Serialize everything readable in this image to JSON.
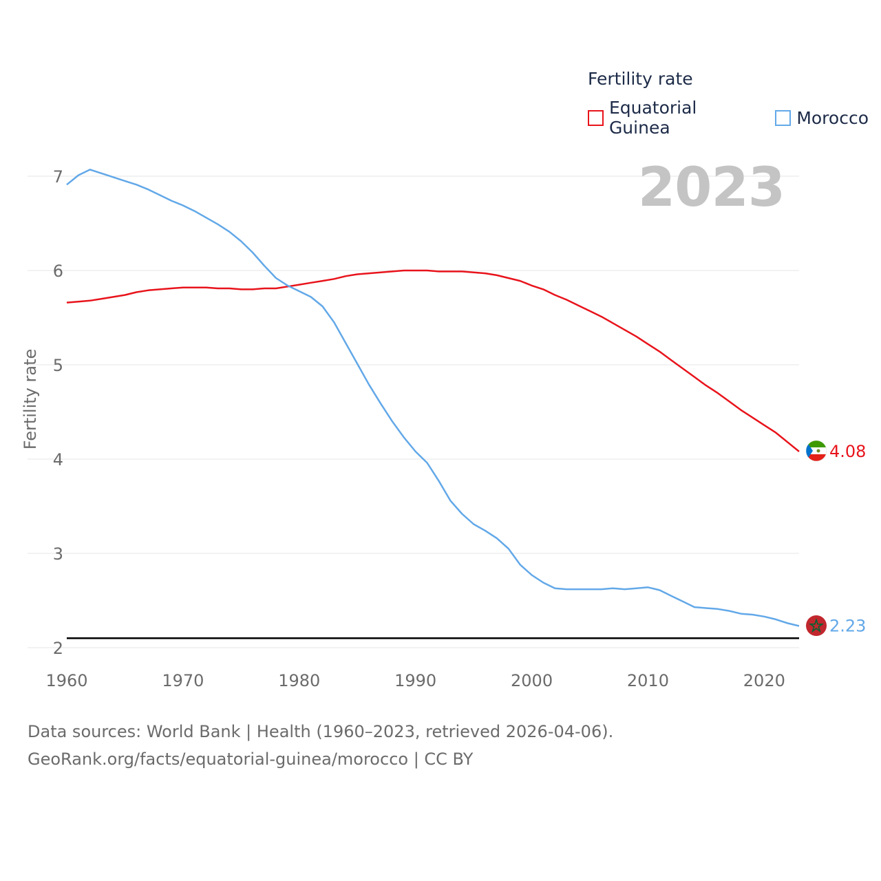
{
  "legend": {
    "title": "Fertility rate",
    "items": [
      {
        "label": "Equatorial Guinea",
        "color": "#e8131b"
      },
      {
        "label": "Morocco",
        "color": "#62a8e8"
      }
    ]
  },
  "year_label": "2023",
  "footer": {
    "line1": "Data sources: World Bank | Health (1960–2023, retrieved 2026-04-06).",
    "line2": "GeoRank.org/facts/equatorial-guinea/morocco | CC BY"
  },
  "chart_data": {
    "type": "line",
    "title": "Fertility rate",
    "xlabel": "",
    "ylabel": "Fertility rate",
    "xlim": [
      1960,
      2023
    ],
    "ylim": [
      2,
      7
    ],
    "x_ticks": [
      1960,
      1970,
      1980,
      1990,
      2000,
      2010,
      2020
    ],
    "y_ticks": [
      2,
      3,
      4,
      5,
      6,
      7
    ],
    "grid": true,
    "reference_line": {
      "y": 2.1,
      "color": "#000000"
    },
    "x": [
      1960,
      1961,
      1962,
      1963,
      1964,
      1965,
      1966,
      1967,
      1968,
      1969,
      1970,
      1971,
      1972,
      1973,
      1974,
      1975,
      1976,
      1977,
      1978,
      1979,
      1980,
      1981,
      1982,
      1983,
      1984,
      1985,
      1986,
      1987,
      1988,
      1989,
      1990,
      1991,
      1992,
      1993,
      1994,
      1995,
      1996,
      1997,
      1998,
      1999,
      2000,
      2001,
      2002,
      2003,
      2004,
      2005,
      2006,
      2007,
      2008,
      2009,
      2010,
      2011,
      2012,
      2013,
      2014,
      2015,
      2016,
      2017,
      2018,
      2019,
      2020,
      2021,
      2022,
      2023
    ],
    "series": [
      {
        "name": "Equatorial Guinea",
        "color": "#e8131b",
        "end_label": "4.08",
        "values": [
          5.66,
          5.67,
          5.68,
          5.7,
          5.72,
          5.74,
          5.77,
          5.79,
          5.8,
          5.81,
          5.82,
          5.82,
          5.82,
          5.81,
          5.81,
          5.8,
          5.8,
          5.81,
          5.81,
          5.83,
          5.85,
          5.87,
          5.89,
          5.91,
          5.94,
          5.96,
          5.97,
          5.98,
          5.99,
          6.0,
          6.0,
          6.0,
          5.99,
          5.99,
          5.99,
          5.98,
          5.97,
          5.95,
          5.92,
          5.89,
          5.84,
          5.8,
          5.74,
          5.69,
          5.63,
          5.57,
          5.51,
          5.44,
          5.37,
          5.3,
          5.22,
          5.14,
          5.05,
          4.96,
          4.87,
          4.78,
          4.7,
          4.61,
          4.52,
          4.44,
          4.36,
          4.28,
          4.18,
          4.08
        ]
      },
      {
        "name": "Morocco",
        "color": "#62a8e8",
        "end_label": "2.23",
        "values": [
          6.91,
          7.01,
          7.07,
          7.03,
          6.99,
          6.95,
          6.91,
          6.86,
          6.8,
          6.74,
          6.69,
          6.63,
          6.56,
          6.49,
          6.41,
          6.31,
          6.19,
          6.05,
          5.92,
          5.84,
          5.78,
          5.72,
          5.62,
          5.45,
          5.23,
          5.01,
          4.79,
          4.59,
          4.4,
          4.23,
          4.08,
          3.96,
          3.77,
          3.56,
          3.42,
          3.31,
          3.24,
          3.16,
          3.05,
          2.88,
          2.77,
          2.69,
          2.63,
          2.62,
          2.62,
          2.62,
          2.62,
          2.63,
          2.62,
          2.63,
          2.64,
          2.61,
          2.55,
          2.49,
          2.43,
          2.42,
          2.41,
          2.39,
          2.36,
          2.35,
          2.33,
          2.3,
          2.26,
          2.23
        ]
      }
    ]
  }
}
